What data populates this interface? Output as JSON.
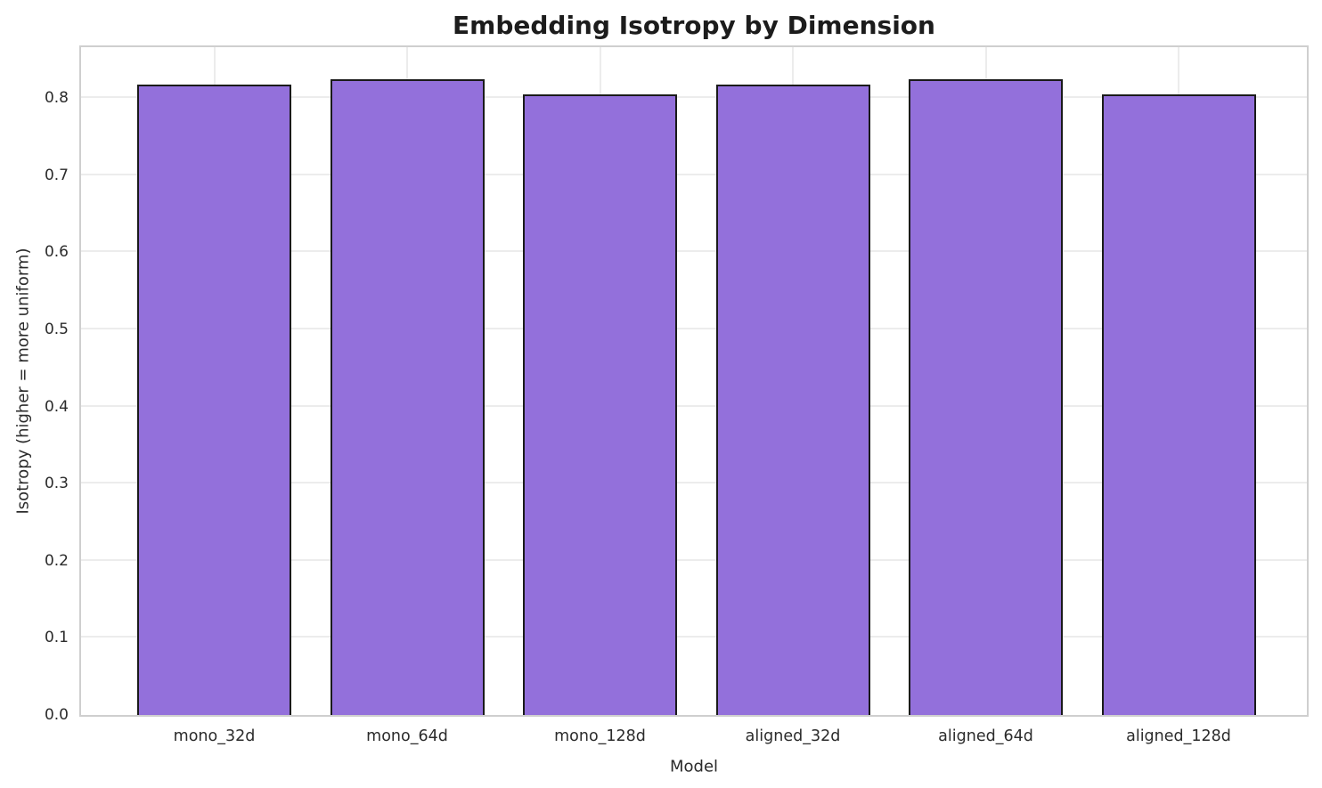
{
  "chart_data": {
    "type": "bar",
    "title": "Embedding Isotropy by Dimension",
    "xlabel": "Model",
    "ylabel": "Isotropy (higher = more uniform)",
    "categories": [
      "mono_32d",
      "mono_64d",
      "mono_128d",
      "aligned_32d",
      "aligned_64d",
      "aligned_128d"
    ],
    "values": [
      0.818,
      0.824,
      0.805,
      0.818,
      0.824,
      0.805
    ],
    "ylim": [
      0,
      0.866
    ],
    "yticks": [
      0.0,
      0.1,
      0.2,
      0.3,
      0.4,
      0.5,
      0.6,
      0.7,
      0.8
    ],
    "ytick_labels": [
      "0.0",
      "0.1",
      "0.2",
      "0.3",
      "0.4",
      "0.5",
      "0.6",
      "0.7",
      "0.8"
    ],
    "grid": true,
    "legend": null,
    "colors": {
      "bar_fill": "#9370DB",
      "bar_edge": "#1a1a1a",
      "gridline": "#ececec",
      "spine": "#cfcfcf",
      "title_text": "#1c1c1c",
      "tick_text": "#2b2b2b",
      "background": "#ffffff"
    }
  }
}
